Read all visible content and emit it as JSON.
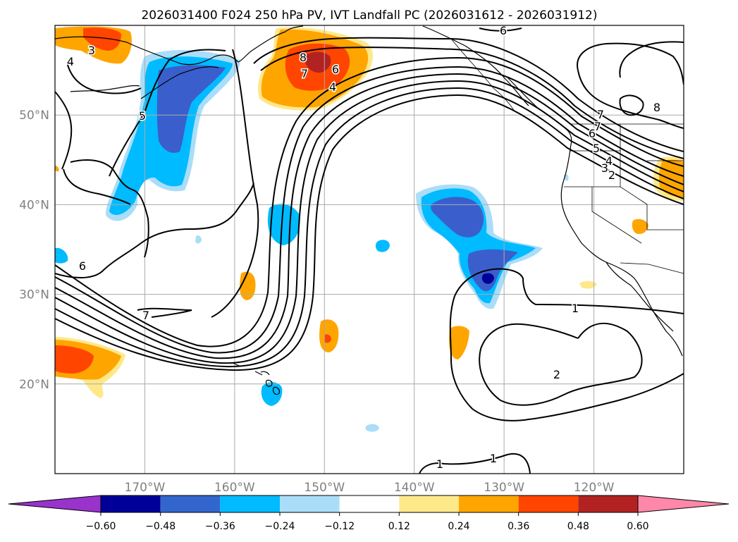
{
  "title": "2026031400 F024 250 hPa PV, IVT Landfall PC (2026031612 - 2026031912)",
  "map": {
    "lon_range": [
      -180,
      -110
    ],
    "lat_range": [
      10,
      60
    ],
    "lon_ticks": [
      {
        "value": -170,
        "label": "170°W"
      },
      {
        "value": -160,
        "label": "160°W"
      },
      {
        "value": -150,
        "label": "150°W"
      },
      {
        "value": -140,
        "label": "140°W"
      },
      {
        "value": -130,
        "label": "130°W"
      },
      {
        "value": -120,
        "label": "120°W"
      }
    ],
    "lat_ticks": [
      {
        "value": 50,
        "label": "50°N"
      },
      {
        "value": 40,
        "label": "40°N"
      },
      {
        "value": 30,
        "label": "30°N"
      },
      {
        "value": 20,
        "label": "20°N"
      }
    ],
    "contour_labels": [
      "6",
      "3",
      "4",
      "5",
      "8",
      "7",
      "6",
      "4",
      "7",
      "6",
      "7",
      "1",
      "2",
      "1",
      "1",
      "8",
      "7",
      "6",
      "5",
      "4",
      "3",
      "2"
    ]
  },
  "colorbar": {
    "colors": [
      "#9933cc",
      "#000099",
      "#3366cc",
      "#00bbff",
      "#aaddf8",
      "#ffffff",
      "#ffe88a",
      "#ffa500",
      "#ff4500",
      "#b22222",
      "#ff88aa"
    ],
    "tick_labels": [
      "−0.60",
      "−0.48",
      "−0.36",
      "−0.24",
      "−0.12",
      "0.12",
      "0.24",
      "0.36",
      "0.48",
      "0.60"
    ]
  },
  "colors": {
    "neg_light": "#aaddf8",
    "neg_mid": "#00bbff",
    "neg_strong": "#3a5fcd",
    "neg_max": "#000099",
    "pos_light": "#ffe88a",
    "pos_mid": "#ffa500",
    "pos_strong": "#ff4500"
  }
}
